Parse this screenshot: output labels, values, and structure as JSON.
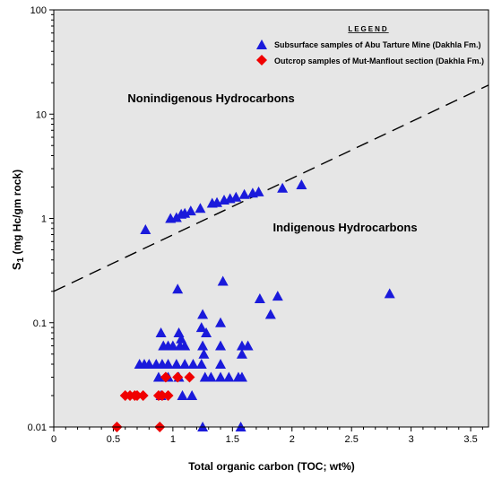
{
  "chart_data": {
    "type": "scatter",
    "xlabel": "Total organic carbon (TOC; wt%)",
    "ylabel_main": "S",
    "ylabel_sub": "1",
    "ylabel_rest": " (mg Hc/gm rock)",
    "xlim": [
      0,
      3.65
    ],
    "ylim": [
      0.01,
      100
    ],
    "y_scale": "log",
    "x_ticks": [
      0,
      0.5,
      1,
      1.5,
      2,
      2.5,
      3,
      3.5
    ],
    "x_tick_labels": [
      "0",
      "0.5",
      "1",
      "1.5",
      "2",
      "2.5",
      "3",
      "3.5"
    ],
    "y_ticks": [
      0.01,
      0.1,
      1,
      10,
      100
    ],
    "y_tick_labels": [
      "0.01",
      "0.1",
      "1",
      "10",
      "100"
    ],
    "background": "#e6e6e6",
    "legend": {
      "title": "LEGEND",
      "position": "top-right",
      "entries": [
        {
          "label": "Subsurface samples of Abu Tarture Mine (Dakhla Fm.)",
          "marker": "triangle",
          "color": "#1a1adb"
        },
        {
          "label": "Outcrop samples of Mut-Manflout section (Dakhla Fm.)",
          "marker": "diamond",
          "color": "#f00000"
        }
      ]
    },
    "annotations": [
      {
        "text": "Nonindigenous Hydrocarbons",
        "x": 0.62,
        "y": 13
      },
      {
        "text": "Indigenous Hydrocarbons",
        "x": 1.84,
        "y": 0.75
      }
    ],
    "dividing_line": {
      "x1": 0,
      "y1": 0.2,
      "x2": 3.65,
      "y2": 19,
      "style": "dashed"
    },
    "series": [
      {
        "name": "Subsurface samples of Abu Tarture Mine (Dakhla Fm.)",
        "marker": "triangle",
        "color": "#1a1adb",
        "points": [
          [
            0.77,
            0.78
          ],
          [
            0.98,
            1.0
          ],
          [
            1.03,
            1.02
          ],
          [
            1.07,
            1.1
          ],
          [
            1.1,
            1.12
          ],
          [
            1.15,
            1.18
          ],
          [
            1.23,
            1.25
          ],
          [
            1.33,
            1.4
          ],
          [
            1.37,
            1.42
          ],
          [
            1.43,
            1.5
          ],
          [
            1.48,
            1.55
          ],
          [
            1.53,
            1.6
          ],
          [
            1.6,
            1.7
          ],
          [
            1.67,
            1.75
          ],
          [
            1.72,
            1.8
          ],
          [
            1.92,
            1.95
          ],
          [
            2.08,
            2.1
          ],
          [
            1.04,
            0.21
          ],
          [
            1.42,
            0.25
          ],
          [
            1.73,
            0.17
          ],
          [
            1.88,
            0.18
          ],
          [
            1.82,
            0.12
          ],
          [
            2.82,
            0.19
          ],
          [
            0.9,
            0.08
          ],
          [
            1.05,
            0.08
          ],
          [
            1.07,
            0.07
          ],
          [
            1.25,
            0.12
          ],
          [
            1.4,
            0.1
          ],
          [
            1.24,
            0.09
          ],
          [
            1.28,
            0.08
          ],
          [
            0.92,
            0.06
          ],
          [
            0.96,
            0.06
          ],
          [
            1.0,
            0.06
          ],
          [
            1.06,
            0.06
          ],
          [
            1.1,
            0.06
          ],
          [
            1.25,
            0.06
          ],
          [
            1.4,
            0.06
          ],
          [
            1.58,
            0.06
          ],
          [
            1.63,
            0.06
          ],
          [
            1.26,
            0.05
          ],
          [
            0.72,
            0.04
          ],
          [
            0.76,
            0.04
          ],
          [
            0.8,
            0.04
          ],
          [
            0.86,
            0.04
          ],
          [
            0.91,
            0.04
          ],
          [
            0.96,
            0.04
          ],
          [
            1.03,
            0.04
          ],
          [
            1.1,
            0.04
          ],
          [
            1.17,
            0.04
          ],
          [
            1.24,
            0.04
          ],
          [
            1.4,
            0.04
          ],
          [
            1.58,
            0.05
          ],
          [
            0.88,
            0.03
          ],
          [
            0.96,
            0.03
          ],
          [
            1.05,
            0.03
          ],
          [
            1.27,
            0.03
          ],
          [
            1.32,
            0.03
          ],
          [
            1.4,
            0.03
          ],
          [
            1.47,
            0.03
          ],
          [
            1.55,
            0.03
          ],
          [
            1.58,
            0.03
          ],
          [
            0.9,
            0.02
          ],
          [
            1.08,
            0.02
          ],
          [
            1.16,
            0.02
          ],
          [
            1.25,
            0.01
          ],
          [
            1.57,
            0.01
          ]
        ]
      },
      {
        "name": "Outcrop samples of Mut-Manflout section (Dakhla Fm.)",
        "marker": "diamond",
        "color": "#f00000",
        "points": [
          [
            0.6,
            0.02
          ],
          [
            0.64,
            0.02
          ],
          [
            0.68,
            0.02
          ],
          [
            0.7,
            0.02
          ],
          [
            0.75,
            0.02
          ],
          [
            0.88,
            0.02
          ],
          [
            0.91,
            0.02
          ],
          [
            0.96,
            0.02
          ],
          [
            0.94,
            0.03
          ],
          [
            1.04,
            0.03
          ],
          [
            1.14,
            0.03
          ],
          [
            0.53,
            0.01
          ],
          [
            0.89,
            0.01
          ]
        ]
      }
    ]
  }
}
